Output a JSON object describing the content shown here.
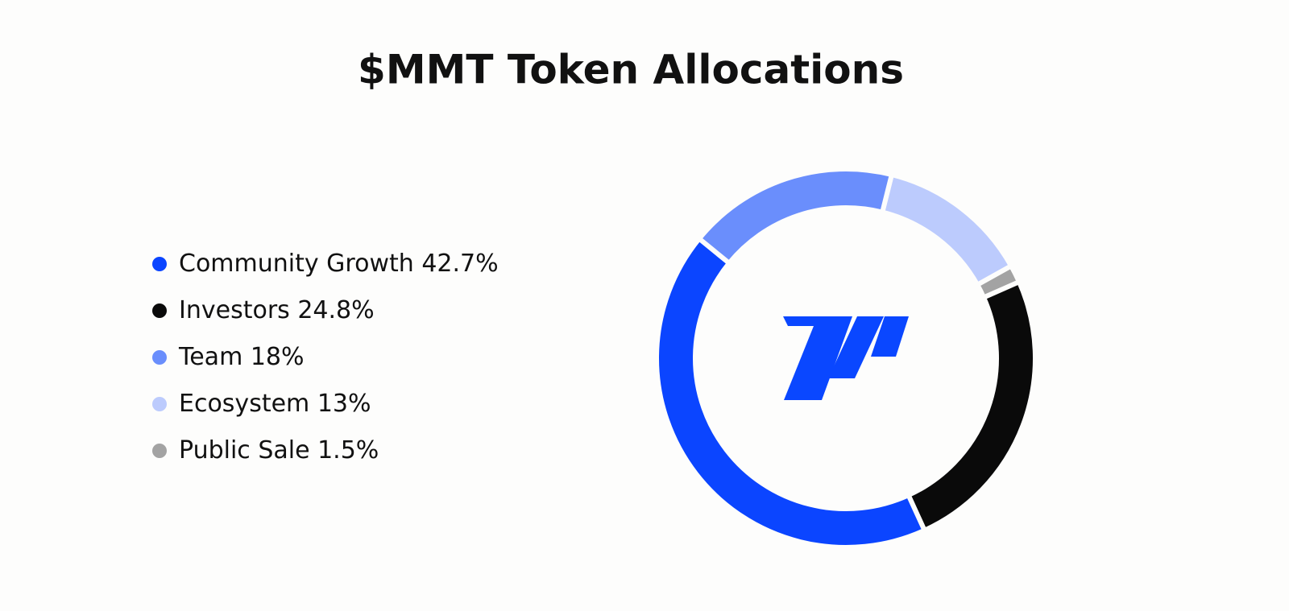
{
  "chart_data": {
    "type": "donut",
    "title": "$MMT Token Allocations",
    "categories": [
      "Community Growth",
      "Investors",
      "Team",
      "Ecosystem",
      "Public Sale"
    ],
    "values": [
      42.7,
      24.8,
      18,
      13,
      1.5
    ],
    "value_labels": [
      "42.7%",
      "24.8%",
      "18%",
      "13%",
      "1.5%"
    ],
    "colors": [
      "#0b45ff",
      "#0a0a0a",
      "#6a8efc",
      "#bccbfd",
      "#a3a3a3"
    ]
  }
}
